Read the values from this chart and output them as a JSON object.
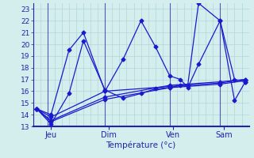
{
  "xlabel": "Température (°c)",
  "background_color": "#d4eeee",
  "line_color": "#1a1acc",
  "grid_color": "#b0d8d8",
  "tick_color": "#2222aa",
  "spine_color": "#2222aa",
  "ylim": [
    13,
    23.5
  ],
  "yticks": [
    13,
    14,
    15,
    16,
    17,
    18,
    19,
    20,
    21,
    22,
    23
  ],
  "xlim": [
    0,
    30
  ],
  "day_positions": [
    2.5,
    10.5,
    19.5,
    26.5
  ],
  "day_labels": [
    "Jeu",
    "Dim",
    "Ven",
    "Sam"
  ],
  "day_vline_x": [
    2.0,
    10.0,
    19.0,
    26.0
  ],
  "series": [
    {
      "x": [
        0.5,
        2.5,
        5.0,
        7.0,
        10.0,
        12.5,
        15.0,
        17.0,
        19.0,
        20.5,
        21.5,
        23.0,
        26.0,
        28.0,
        29.5
      ],
      "y": [
        14.5,
        14.0,
        19.5,
        21.0,
        16.0,
        18.7,
        22.0,
        19.8,
        17.3,
        17.0,
        16.3,
        18.3,
        22.0,
        17.0,
        16.8
      ]
    },
    {
      "x": [
        0.5,
        2.5,
        5.0,
        7.0,
        10.0,
        12.5,
        15.0,
        17.0,
        19.0,
        20.5,
        21.5,
        23.0,
        26.0,
        28.0,
        29.5
      ],
      "y": [
        14.5,
        13.2,
        15.8,
        20.3,
        16.1,
        15.4,
        15.8,
        16.2,
        16.3,
        16.5,
        16.5,
        23.5,
        22.0,
        15.2,
        16.8
      ]
    },
    {
      "x": [
        0.5,
        2.5,
        10.0,
        19.0,
        26.0,
        29.5
      ],
      "y": [
        14.5,
        13.8,
        16.0,
        16.4,
        16.7,
        17.0
      ]
    },
    {
      "x": [
        0.5,
        2.5,
        10.0,
        19.0,
        26.0,
        29.5
      ],
      "y": [
        14.5,
        13.5,
        15.5,
        16.5,
        16.8,
        17.0
      ]
    },
    {
      "x": [
        0.5,
        2.5,
        10.0,
        19.0,
        26.0,
        29.5
      ],
      "y": [
        14.5,
        13.4,
        15.3,
        16.3,
        16.6,
        16.9
      ]
    }
  ]
}
